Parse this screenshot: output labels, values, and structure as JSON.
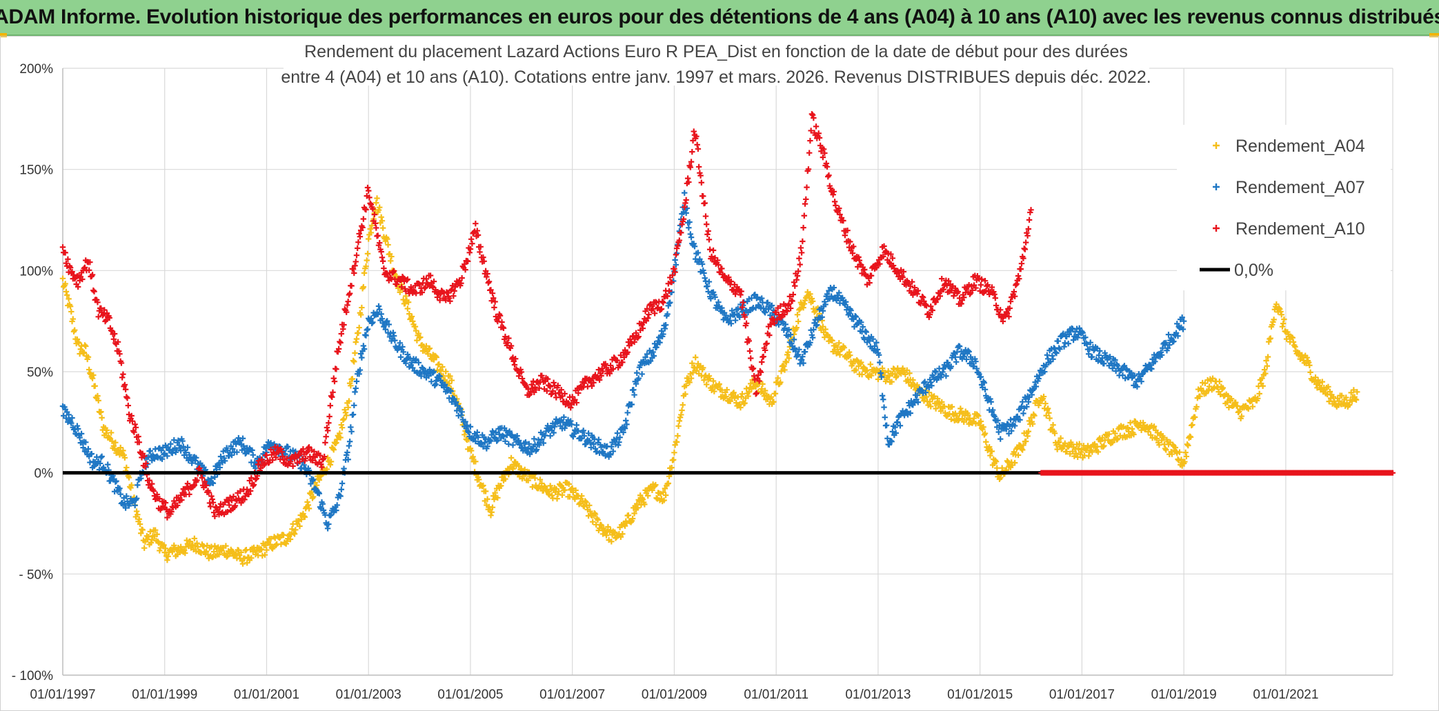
{
  "banner": {
    "text": "ADAM Informe. Evolution historique des performances en euros pour des détentions de 4 ans (A04) à 10 ans (A10) avec les revenus connus distribués"
  },
  "colors": {
    "banner_bg": "#8fd18f",
    "a04": "#f5be1a",
    "a07": "#1f77c4",
    "a10": "#e8141c",
    "zero_line": "#000000",
    "grid": "#d9d9d9"
  },
  "chart_data": {
    "type": "scatter",
    "title_lines": [
      "Rendement du placement Lazard Actions Euro R PEA_Dist en fonction de la date de début pour des durées",
      "entre 4 (A04) et 10 ans (A10). Cotations entre janv. 1997 et mars. 2026. Revenus DISTRIBUES depuis déc. 2022."
    ],
    "xlabel": "",
    "ylabel": "",
    "xlim": [
      1997.0,
      2023.1
    ],
    "ylim": [
      -100,
      200
    ],
    "y_ticks": [
      -100,
      -50,
      0,
      50,
      100,
      150,
      200
    ],
    "y_tick_labels": [
      "- 100%",
      "- 50%",
      "0%",
      "50%",
      "100%",
      "150%",
      "200%"
    ],
    "x_ticks": [
      1997,
      1999,
      2001,
      2003,
      2005,
      2007,
      2009,
      2011,
      2013,
      2015,
      2017,
      2019,
      2021
    ],
    "x_tick_labels": [
      "01/01/1997",
      "01/01/1999",
      "01/01/2001",
      "01/01/2003",
      "01/01/2005",
      "01/01/2007",
      "01/01/2009",
      "01/01/2011",
      "01/01/2013",
      "01/01/2015",
      "01/01/2017",
      "01/01/2019",
      "01/01/2021"
    ],
    "grid": true,
    "legend_position": "top-right",
    "series": [
      {
        "name": "Rendement_A04",
        "marker": "+",
        "color": "#f5be1a",
        "x": [
          1997.0,
          1997.15,
          1997.3,
          1997.45,
          1997.6,
          1997.8,
          1998.0,
          1998.2,
          1998.4,
          1998.6,
          1998.8,
          1999.0,
          1999.3,
          1999.6,
          1999.9,
          2000.2,
          2000.5,
          2000.8,
          2001.1,
          2001.4,
          2001.7,
          2002.0,
          2002.2,
          2002.4,
          2002.6,
          2002.8,
          2003.0,
          2003.15,
          2003.3,
          2003.5,
          2003.8,
          2004.0,
          2004.3,
          2004.6,
          2004.8,
          2005.0,
          2005.2,
          2005.4,
          2005.6,
          2005.8,
          2006.0,
          2006.3,
          2006.6,
          2006.9,
          2007.2,
          2007.5,
          2007.8,
          2008.0,
          2008.3,
          2008.6,
          2008.8,
          2009.0,
          2009.2,
          2009.4,
          2009.6,
          2009.8,
          2010.0,
          2010.3,
          2010.6,
          2010.9,
          2011.2,
          2011.4,
          2011.6,
          2011.8,
          2012.0,
          2012.3,
          2012.6,
          2012.9,
          2013.2,
          2013.5,
          2013.8,
          2014.1,
          2014.4,
          2014.7,
          2015.0,
          2015.2,
          2015.4,
          2015.6,
          2015.8,
          2016.0,
          2016.2,
          2016.5,
          2016.8,
          2017.1,
          2017.4,
          2017.7,
          2018.0,
          2018.2,
          2018.4,
          2018.6,
          2018.8,
          2019.0,
          2019.3,
          2019.6,
          2019.9,
          2020.1,
          2020.4,
          2020.6,
          2020.8,
          2021.0,
          2021.2,
          2021.4,
          2021.6,
          2021.8,
          2022.0,
          2022.2,
          2022.4
        ],
        "y": [
          95,
          80,
          62,
          60,
          45,
          22,
          15,
          8,
          -15,
          -35,
          -30,
          -40,
          -38,
          -35,
          -40,
          -38,
          -42,
          -40,
          -35,
          -32,
          -22,
          -5,
          5,
          15,
          35,
          70,
          115,
          135,
          120,
          100,
          80,
          65,
          55,
          45,
          30,
          10,
          -5,
          -18,
          -5,
          5,
          0,
          -5,
          -10,
          -8,
          -15,
          -25,
          -32,
          -28,
          -15,
          -8,
          -12,
          10,
          40,
          55,
          48,
          42,
          40,
          35,
          45,
          35,
          55,
          75,
          90,
          80,
          65,
          60,
          52,
          50,
          48,
          50,
          40,
          35,
          30,
          28,
          25,
          10,
          -2,
          5,
          12,
          25,
          40,
          15,
          12,
          10,
          15,
          20,
          22,
          25,
          20,
          15,
          10,
          5,
          40,
          45,
          35,
          30,
          35,
          50,
          85,
          70,
          60,
          55,
          45,
          40,
          35,
          35,
          40
        ]
      },
      {
        "name": "Rendement_A07",
        "marker": "+",
        "color": "#1f77c4",
        "x": [
          1997.0,
          1997.2,
          1997.4,
          1997.6,
          1997.8,
          1998.0,
          1998.2,
          1998.4,
          1998.6,
          1998.8,
          1999.0,
          1999.3,
          1999.6,
          1999.9,
          2000.2,
          2000.5,
          2000.8,
          2001.1,
          2001.4,
          2001.7,
          2002.0,
          2002.2,
          2002.4,
          2002.6,
          2002.8,
          2003.0,
          2003.2,
          2003.5,
          2003.8,
          2004.1,
          2004.4,
          2004.7,
          2005.0,
          2005.3,
          2005.6,
          2005.9,
          2006.2,
          2006.5,
          2006.8,
          2007.1,
          2007.4,
          2007.7,
          2008.0,
          2008.3,
          2008.6,
          2008.8,
          2009.0,
          2009.2,
          2009.4,
          2009.7,
          2010.0,
          2010.3,
          2010.6,
          2010.9,
          2011.2,
          2011.5,
          2011.8,
          2012.1,
          2012.4,
          2012.7,
          2013.0,
          2013.2,
          2013.4,
          2013.7,
          2014.0,
          2014.3,
          2014.6,
          2014.9,
          2015.1,
          2015.4,
          2015.7,
          2016.0,
          2016.3,
          2016.6,
          2016.9,
          2017.2,
          2017.5,
          2017.8,
          2018.1,
          2018.4,
          2018.7,
          2019.0
        ],
        "y": [
          30,
          25,
          15,
          5,
          5,
          -5,
          -15,
          -15,
          5,
          10,
          10,
          15,
          5,
          -5,
          10,
          15,
          5,
          15,
          10,
          5,
          -10,
          -25,
          -15,
          10,
          50,
          75,
          80,
          65,
          55,
          50,
          45,
          35,
          20,
          15,
          20,
          15,
          12,
          20,
          25,
          20,
          15,
          10,
          20,
          50,
          60,
          70,
          100,
          135,
          110,
          90,
          75,
          80,
          85,
          80,
          70,
          55,
          75,
          90,
          80,
          70,
          60,
          15,
          25,
          35,
          45,
          50,
          60,
          55,
          40,
          20,
          25,
          40,
          55,
          65,
          70,
          60,
          55,
          50,
          45,
          55,
          65,
          75
        ]
      },
      {
        "name": "Rendement_A10",
        "marker": "+",
        "color": "#e8141c",
        "x": [
          1997.0,
          1997.15,
          1997.3,
          1997.5,
          1997.7,
          1997.9,
          1998.1,
          1998.3,
          1998.5,
          1998.7,
          1998.9,
          1999.1,
          1999.4,
          1999.7,
          2000.0,
          2000.3,
          2000.6,
          2000.9,
          2001.2,
          2001.5,
          2001.8,
          2002.1,
          2002.4,
          2002.7,
          2003.0,
          2003.3,
          2003.6,
          2003.9,
          2004.2,
          2004.5,
          2004.8,
          2005.1,
          2005.3,
          2005.5,
          2005.8,
          2006.1,
          2006.4,
          2006.7,
          2007.0,
          2007.3,
          2007.6,
          2007.9,
          2008.2,
          2008.5,
          2008.8,
          2009.0,
          2009.2,
          2009.4,
          2009.7,
          2010.0,
          2010.3,
          2010.6,
          2010.9,
          2011.1,
          2011.3,
          2011.5,
          2011.7,
          2011.9,
          2012.2,
          2012.5,
          2012.8,
          2013.1,
          2013.4,
          2013.7,
          2014.0,
          2014.3,
          2014.6,
          2014.9,
          2015.2,
          2015.5,
          2015.8,
          2016.0
        ],
        "y": [
          112,
          100,
          95,
          105,
          80,
          75,
          60,
          30,
          15,
          -5,
          -15,
          -20,
          -10,
          0,
          -20,
          -15,
          -10,
          5,
          10,
          5,
          10,
          5,
          60,
          100,
          140,
          100,
          95,
          90,
          95,
          85,
          95,
          120,
          100,
          80,
          60,
          40,
          45,
          40,
          35,
          45,
          50,
          55,
          65,
          80,
          85,
          100,
          130,
          170,
          110,
          95,
          90,
          40,
          75,
          80,
          85,
          110,
          175,
          160,
          130,
          110,
          95,
          110,
          100,
          90,
          80,
          95,
          85,
          95,
          90,
          75,
          100,
          130
        ]
      },
      {
        "name": "0,0%",
        "type": "line",
        "color": "#000000",
        "x": [
          1997.0,
          2023.1
        ],
        "y": [
          0,
          0
        ]
      }
    ],
    "flat_tail": {
      "description_free": true,
      "x_range": [
        2016.2,
        2023.1
      ],
      "y": 0,
      "color": "#e8141c"
    }
  }
}
